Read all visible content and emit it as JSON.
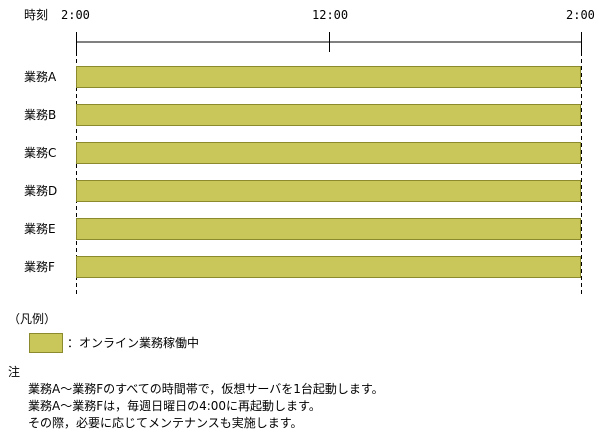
{
  "timeline": {
    "header_label": "時刻",
    "ticks": [
      "2:00",
      "12:00",
      "2:00"
    ]
  },
  "rows": [
    {
      "label": "業務A",
      "status": "online",
      "start": "2:00",
      "end": "2:00"
    },
    {
      "label": "業務B",
      "status": "online",
      "start": "2:00",
      "end": "2:00"
    },
    {
      "label": "業務C",
      "status": "online",
      "start": "2:00",
      "end": "2:00"
    },
    {
      "label": "業務D",
      "status": "online",
      "start": "2:00",
      "end": "2:00"
    },
    {
      "label": "業務E",
      "status": "online",
      "start": "2:00",
      "end": "2:00"
    },
    {
      "label": "業務F",
      "status": "online",
      "start": "2:00",
      "end": "2:00"
    }
  ],
  "legend": {
    "title": "（凡例）",
    "items": [
      {
        "label": "：オンライン業務稼働中",
        "color": "#c9c75a"
      }
    ]
  },
  "notes": {
    "title": "注",
    "lines": [
      "業務A～業務Fのすべての時間帯で，仮想サーバを1台起動します。",
      "業務A～業務Fは，毎週日曜日の4:00に再起動します。",
      "その際，必要に応じてメンテナンスも実施します。"
    ]
  },
  "colors": {
    "bar_fill": "#c9c75a",
    "bar_border": "#8b8b2e"
  }
}
